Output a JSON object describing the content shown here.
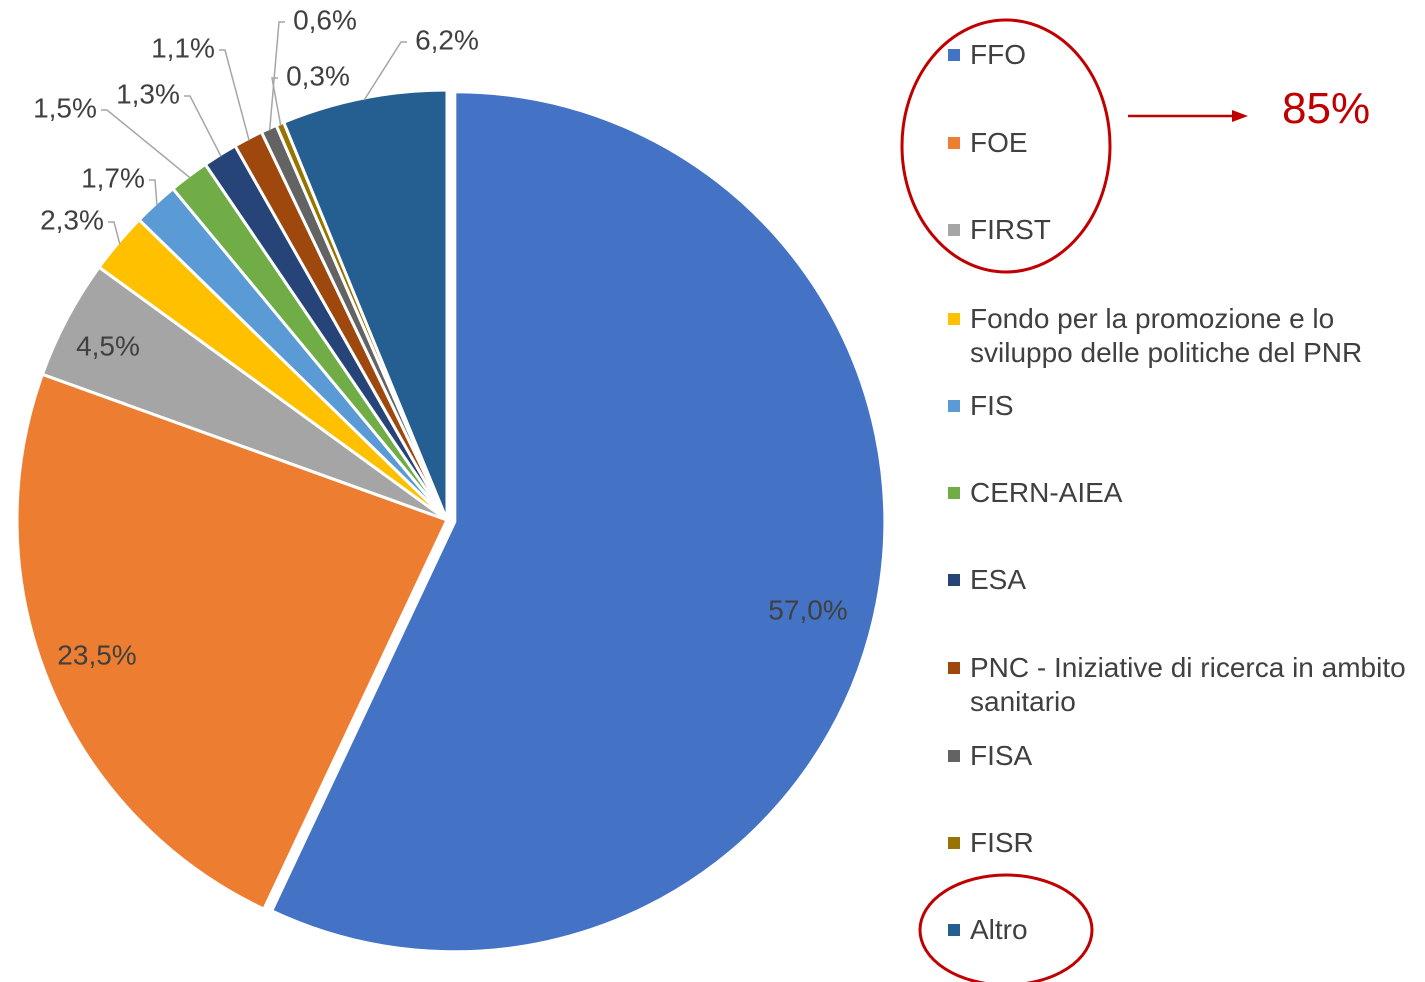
{
  "chart_data": {
    "type": "pie",
    "categories": [
      "FFO",
      "FOE",
      "FIRST",
      "Fondo per la promozione e lo sviluppo delle politiche del PNR",
      "FIS",
      "CERN-AIEA",
      "ESA",
      "PNC - Iniziative di ricerca in ambito sanitario",
      "FISA",
      "FISR",
      "Altro"
    ],
    "values": [
      57.0,
      23.5,
      4.5,
      2.3,
      1.7,
      1.5,
      1.3,
      1.1,
      0.6,
      0.3,
      6.2
    ],
    "value_labels": [
      "57,0%",
      "23,5%",
      "4,5%",
      "2,3%",
      "1,7%",
      "1,5%",
      "1,3%",
      "1,1%",
      "0,6%",
      "0,3%",
      "6,2%"
    ],
    "colors": [
      "#4472c4",
      "#ed7d31",
      "#a5a5a5",
      "#ffc000",
      "#5b9bd5",
      "#70ad47",
      "#264478",
      "#9e480e",
      "#636363",
      "#997300",
      "#255e91"
    ],
    "annotation": "85%"
  }
}
